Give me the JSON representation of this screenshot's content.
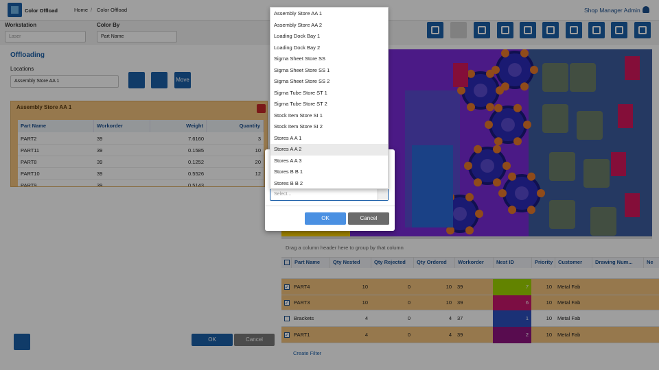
{
  "header": {
    "app_name": "Color Offload",
    "breadcrumb": [
      "Home",
      "Color Offload"
    ],
    "user": "Shop Manager Admin"
  },
  "filters": {
    "workstation_label": "Workstation",
    "workstation_value": "Laser",
    "color_by_label": "Color By",
    "color_by_value": "Part Name"
  },
  "offloading": {
    "title": "Offloading",
    "locations_label": "Locations",
    "location_value": "Assembly Store AA 1",
    "move_button": "Move"
  },
  "panel": {
    "title": "Assembly Store AA 1",
    "columns": [
      "Part Name",
      "Workorder",
      "Weight",
      "Quantity"
    ],
    "rows": [
      [
        "PART2",
        "39",
        "7.6160",
        "3"
      ],
      [
        "PART11",
        "39",
        "0.1585",
        "10"
      ],
      [
        "PART8",
        "39",
        "0.1252",
        "20"
      ],
      [
        "PART10",
        "39",
        "0.5526",
        "12"
      ],
      [
        "PART9",
        "39",
        "0.5143"
      ]
    ]
  },
  "footer": {
    "ok": "OK",
    "cancel": "Cancel"
  },
  "grid": {
    "group_hint": "Drag a column header here to group by that column",
    "columns": [
      "Part Name",
      "Qty Nested",
      "Qty Rejected",
      "Qty Ordered",
      "Workorder",
      "Nest ID",
      "Priority",
      "Customer",
      "Drawing Num...",
      "Ne"
    ],
    "rows": [
      [
        "PART4",
        "10",
        "0",
        "10",
        "39",
        "7",
        "10",
        "Metal Fab"
      ],
      [
        "PART3",
        "10",
        "0",
        "10",
        "39",
        "6",
        "10",
        "Metal Fab"
      ],
      [
        "Brackets",
        "4",
        "0",
        "4",
        "37",
        "1",
        "10",
        "Metal Fab"
      ],
      [
        "PART1",
        "4",
        "0",
        "4",
        "39",
        "2",
        "10",
        "Metal Fab"
      ]
    ],
    "checked": [
      true,
      true,
      false,
      true
    ],
    "create_filter": "Create Filter"
  },
  "dropdown": {
    "options": [
      "Assembly Store AA 1",
      "Assembly Store AA 2",
      "Loading Dock Bay 1",
      "Loading Dock Bay 2",
      "Sigma Sheet Store SS",
      "Sigma Sheet Store SS 1",
      "Sigma Sheet Store SS 2",
      "Sigma Tube Store ST 1",
      "Sigma Tube Store ST 2",
      "Stock Item Store SI 1",
      "Stock Item Store SI 2",
      "Stores A A 1",
      "Stores A A 2",
      "Stores A A 3",
      "Stores B B 1",
      "Stores B B 2"
    ],
    "placeholder": "Select...",
    "ok": "OK",
    "cancel": "Cancel"
  }
}
